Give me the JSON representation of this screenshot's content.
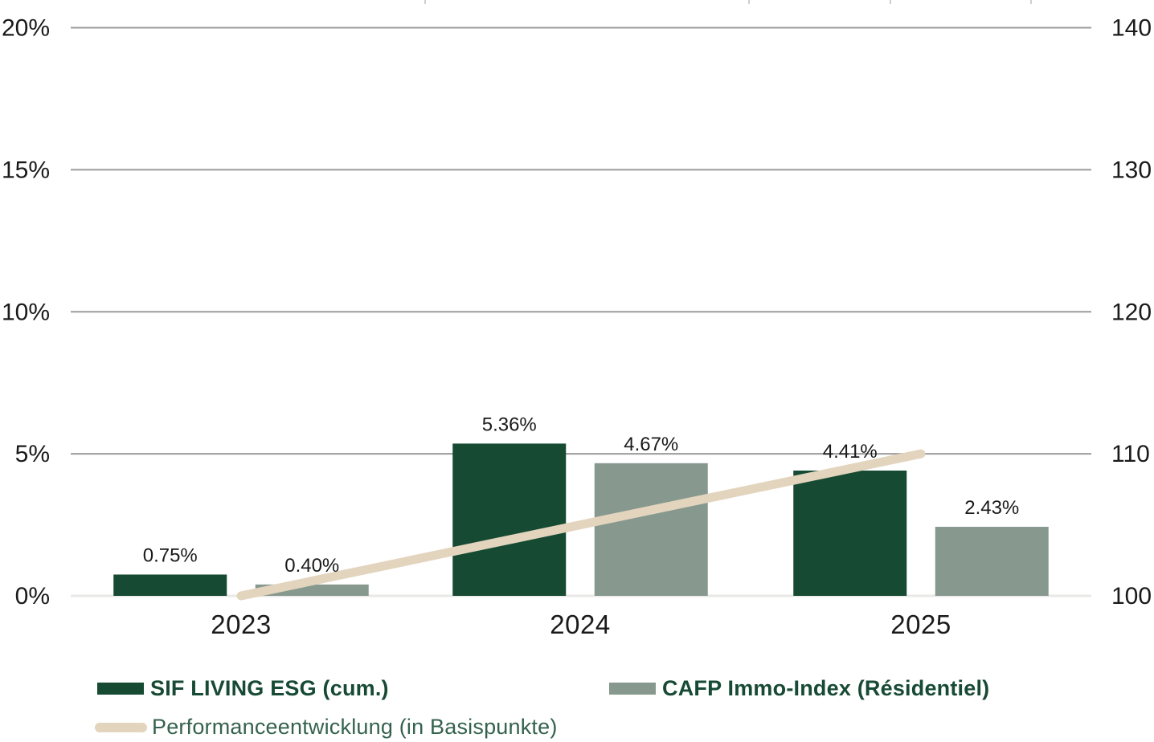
{
  "chart_data": {
    "type": "bar",
    "categories": [
      "2023",
      "2024",
      "2025"
    ],
    "series": [
      {
        "name": "SIF LIVING ESG (cum.)",
        "values": [
          0.75,
          5.36,
          4.41
        ],
        "labels": [
          "0.75%",
          "5.36%",
          "4.41%"
        ],
        "color": "#164A33",
        "axis": "left"
      },
      {
        "name": "CAFP Immo-Index (Résidentiel)",
        "values": [
          0.4,
          4.67,
          2.43
        ],
        "labels": [
          "0.40%",
          "4.67%",
          "2.43%"
        ],
        "color": "#87998E",
        "axis": "left"
      }
    ],
    "line_series": {
      "name": "Performanceentwicklung (in Basispunkte)",
      "values": [
        100,
        105,
        110
      ],
      "color": "#E3D4BE",
      "axis": "right"
    },
    "left_axis": {
      "ticks": [
        "20%",
        "15%",
        "10%",
        "5%",
        "0%"
      ],
      "min": 0,
      "max": 20,
      "unit": "%"
    },
    "right_axis": {
      "ticks": [
        "140",
        "130",
        "120",
        "110",
        "100"
      ],
      "min": 100,
      "max": 140
    },
    "grid": true,
    "legend_position": "bottom",
    "title": "",
    "xlabel": "",
    "ylabel": ""
  },
  "legend": {
    "items": [
      {
        "label": "SIF LIVING ESG (cum.)",
        "swatch": "rect",
        "color": "#164A33"
      },
      {
        "label": "CAFP Immo-Index (Résidentiel)",
        "swatch": "rect",
        "color": "#87998E"
      },
      {
        "label": "Performanceentwicklung (in Basispunkte)",
        "swatch": "line",
        "color": "#E3D4BE"
      }
    ]
  },
  "colors": {
    "bar_dark_green": "#164A33",
    "bar_sage_green": "#87998E",
    "line_beige": "#E3D4BE",
    "gridline": "#9B9B9B",
    "baseline": "#E8E8E6",
    "axis_text": "#1A1A1A",
    "legend_bold_text": "#174A35",
    "legend_regular_text": "#35624E"
  }
}
